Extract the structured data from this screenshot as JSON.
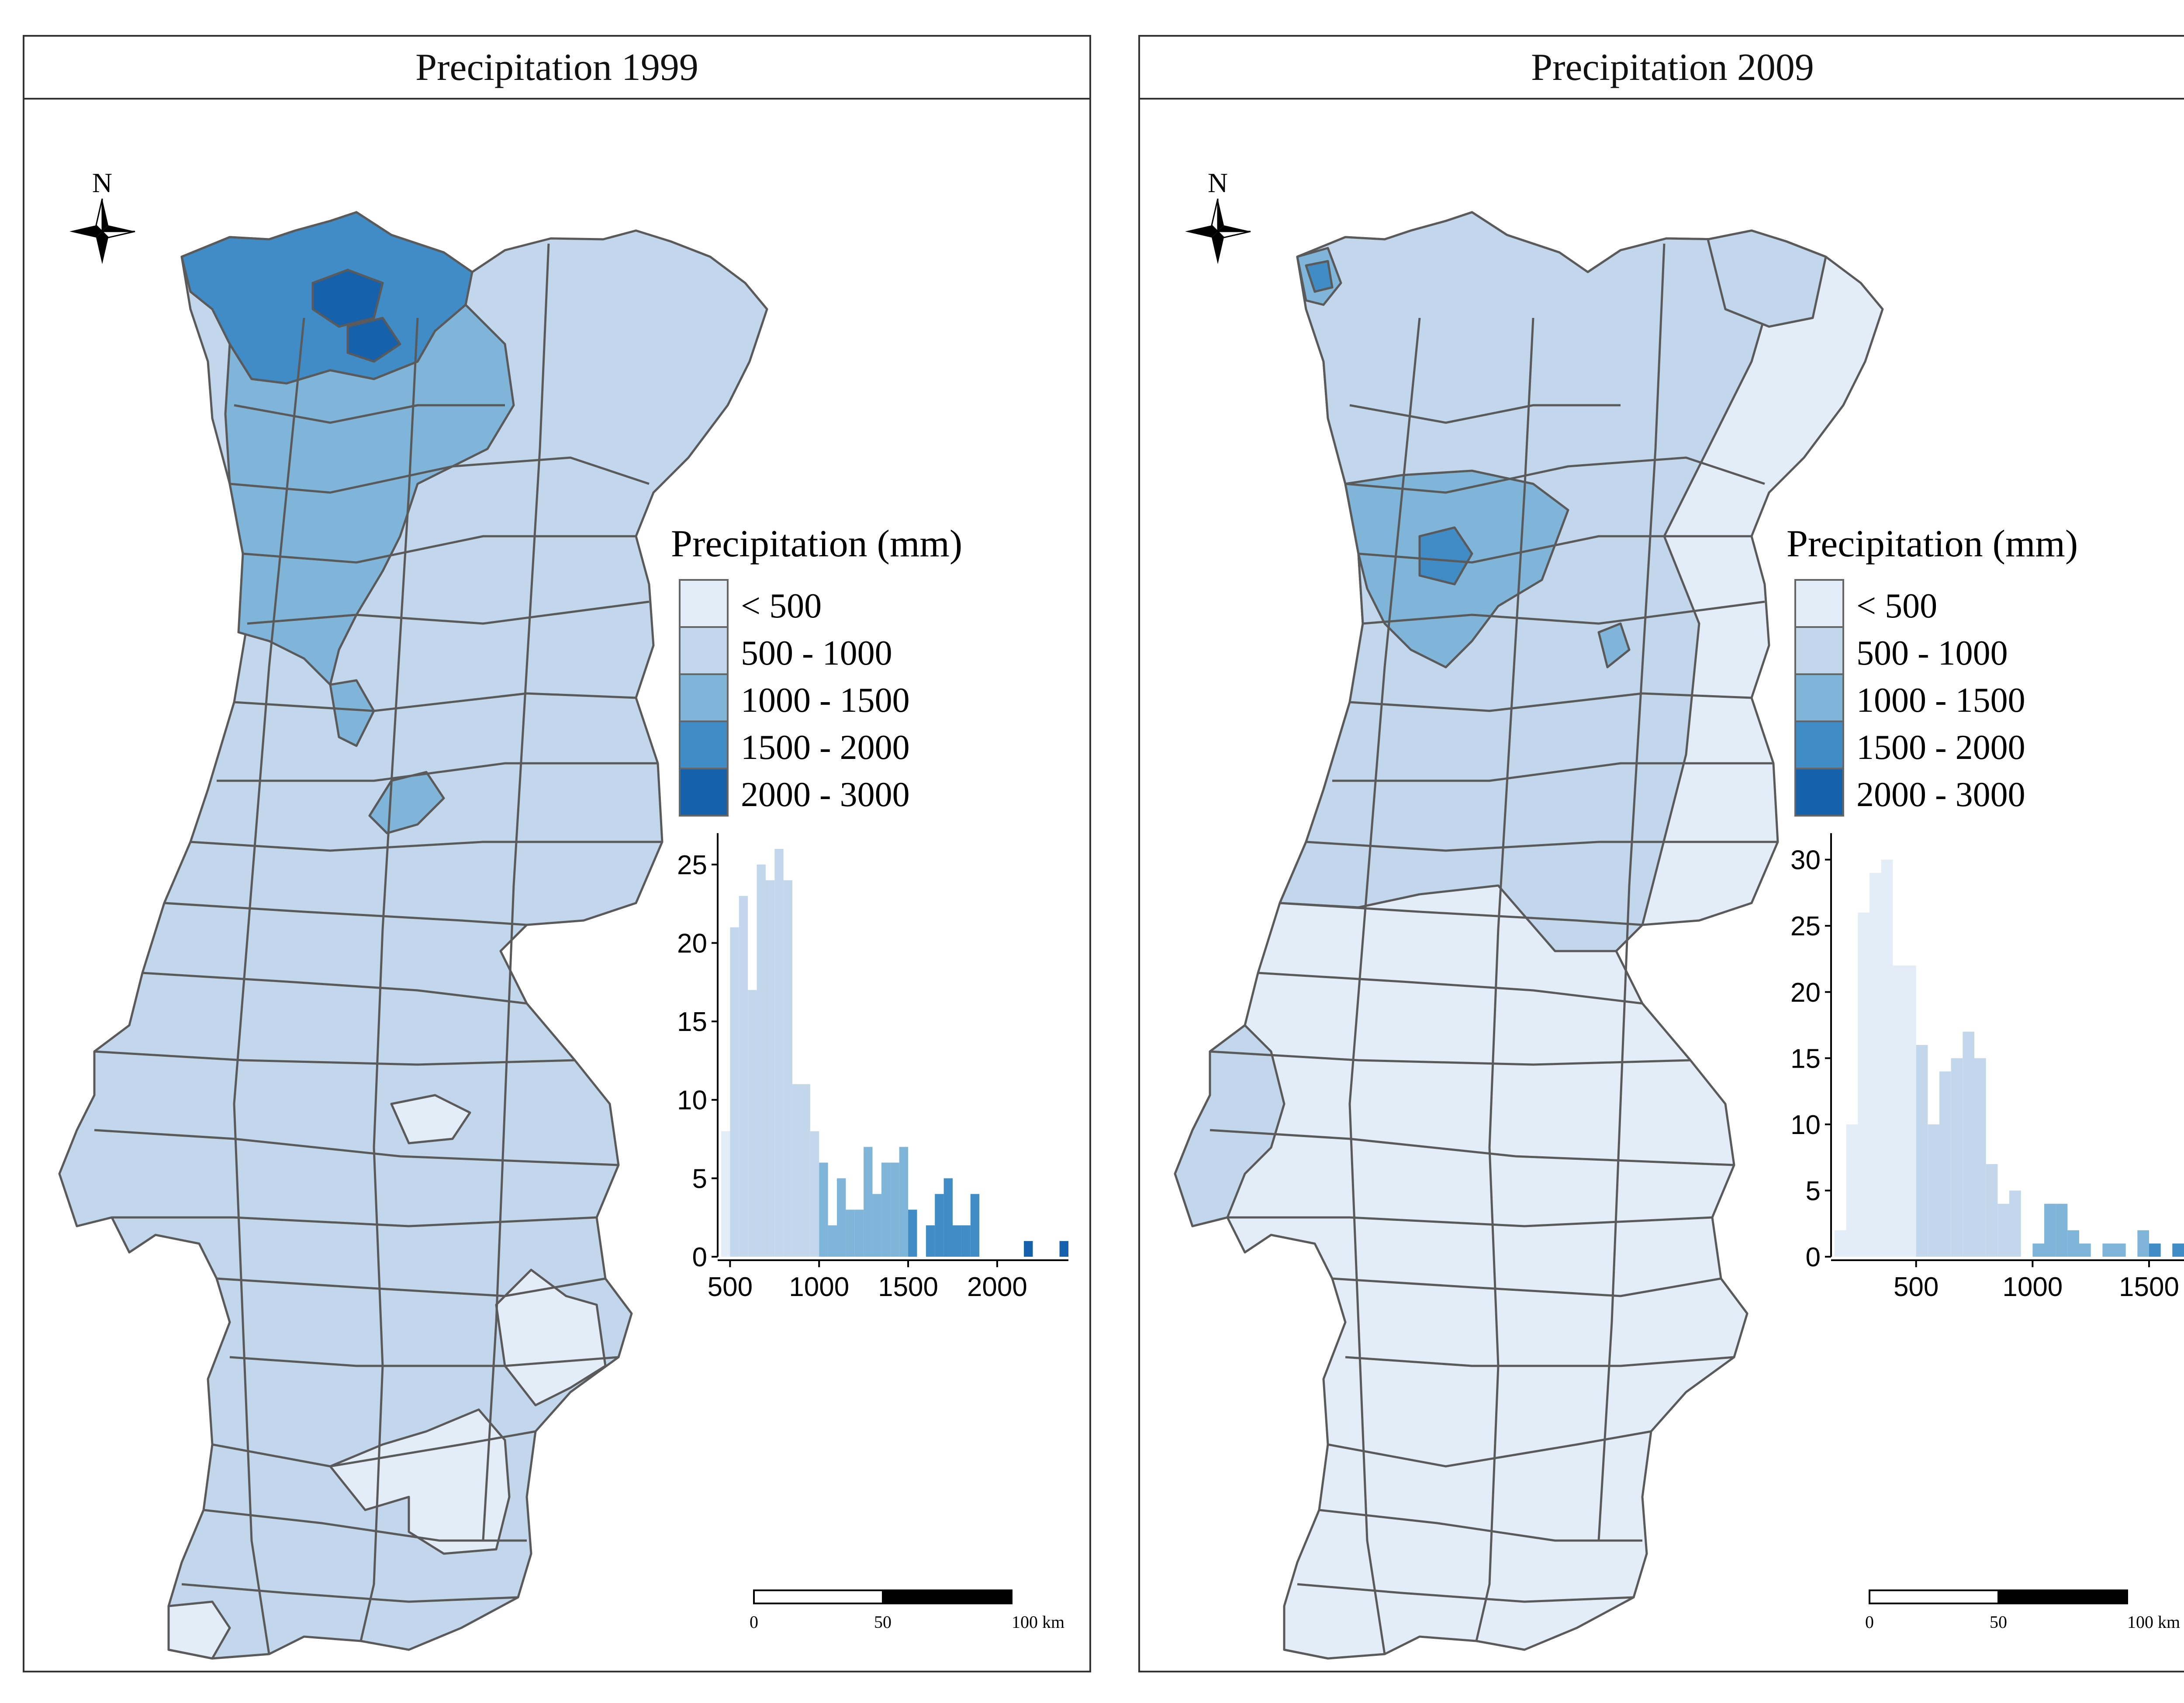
{
  "panels": [
    {
      "title": "Precipitation 1999"
    },
    {
      "title": "Precipitation 2009"
    }
  ],
  "north_label": "N",
  "legend": {
    "title": "Precipitation (mm)",
    "classes": [
      {
        "label": "< 500",
        "color": "#e3edf8"
      },
      {
        "label": "500 - 1000",
        "color": "#c3d7ec"
      },
      {
        "label": "1000 - 1500",
        "color": "#80b5da"
      },
      {
        "label": "1500 - 2000",
        "color": "#3f8cc6"
      },
      {
        "label": "2000 - 3000",
        "color": "#1561ac"
      }
    ]
  },
  "scale_bar": {
    "labels": [
      "0",
      "50",
      "100  km"
    ]
  },
  "chart_data": [
    {
      "type": "bar",
      "subtype": "histogram",
      "panel": "Precipitation 1999",
      "xlim": [
        450,
        2400
      ],
      "ylim": [
        0,
        27
      ],
      "x_ticks": [
        500,
        1000,
        1500,
        2000
      ],
      "x_tick_labels": [
        "500",
        "1000",
        "1500",
        "2000"
      ],
      "y_ticks": [
        0,
        5,
        10,
        15,
        20,
        25
      ],
      "bin_width": 50,
      "bins": [
        {
          "x": 450,
          "count": 8
        },
        {
          "x": 500,
          "count": 21
        },
        {
          "x": 550,
          "count": 23
        },
        {
          "x": 600,
          "count": 17
        },
        {
          "x": 650,
          "count": 25
        },
        {
          "x": 700,
          "count": 24
        },
        {
          "x": 750,
          "count": 26
        },
        {
          "x": 800,
          "count": 24
        },
        {
          "x": 850,
          "count": 11
        },
        {
          "x": 900,
          "count": 11
        },
        {
          "x": 950,
          "count": 8
        },
        {
          "x": 1000,
          "count": 6
        },
        {
          "x": 1050,
          "count": 2
        },
        {
          "x": 1100,
          "count": 5
        },
        {
          "x": 1150,
          "count": 3
        },
        {
          "x": 1200,
          "count": 3
        },
        {
          "x": 1250,
          "count": 7
        },
        {
          "x": 1300,
          "count": 4
        },
        {
          "x": 1350,
          "count": 6
        },
        {
          "x": 1400,
          "count": 6
        },
        {
          "x": 1450,
          "count": 7
        },
        {
          "x": 1500,
          "count": 3
        },
        {
          "x": 1550,
          "count": 0
        },
        {
          "x": 1600,
          "count": 2
        },
        {
          "x": 1650,
          "count": 4
        },
        {
          "x": 1700,
          "count": 5
        },
        {
          "x": 1750,
          "count": 2
        },
        {
          "x": 1800,
          "count": 2
        },
        {
          "x": 1850,
          "count": 4
        },
        {
          "x": 2150,
          "count": 1
        },
        {
          "x": 2350,
          "count": 1
        }
      ]
    },
    {
      "type": "bar",
      "subtype": "histogram",
      "panel": "Precipitation 2009",
      "xlim": [
        150,
        1650
      ],
      "ylim": [
        0,
        32
      ],
      "x_ticks": [
        500,
        1000,
        1500
      ],
      "x_tick_labels": [
        "500",
        "1000",
        "1500"
      ],
      "y_ticks": [
        0,
        5,
        10,
        15,
        20,
        25,
        30
      ],
      "bin_width": 50,
      "bins": [
        {
          "x": 150,
          "count": 2
        },
        {
          "x": 200,
          "count": 10
        },
        {
          "x": 250,
          "count": 26
        },
        {
          "x": 300,
          "count": 29
        },
        {
          "x": 350,
          "count": 30
        },
        {
          "x": 400,
          "count": 22
        },
        {
          "x": 450,
          "count": 22
        },
        {
          "x": 500,
          "count": 16
        },
        {
          "x": 550,
          "count": 10
        },
        {
          "x": 600,
          "count": 14
        },
        {
          "x": 650,
          "count": 15
        },
        {
          "x": 700,
          "count": 17
        },
        {
          "x": 750,
          "count": 15
        },
        {
          "x": 800,
          "count": 7
        },
        {
          "x": 850,
          "count": 4
        },
        {
          "x": 900,
          "count": 5
        },
        {
          "x": 950,
          "count": 0
        },
        {
          "x": 1000,
          "count": 1
        },
        {
          "x": 1050,
          "count": 4
        },
        {
          "x": 1100,
          "count": 4
        },
        {
          "x": 1150,
          "count": 2
        },
        {
          "x": 1200,
          "count": 1
        },
        {
          "x": 1300,
          "count": 1
        },
        {
          "x": 1350,
          "count": 1
        },
        {
          "x": 1450,
          "count": 2
        },
        {
          "x": 1500,
          "count": 1
        },
        {
          "x": 1600,
          "count": 1
        }
      ]
    }
  ]
}
